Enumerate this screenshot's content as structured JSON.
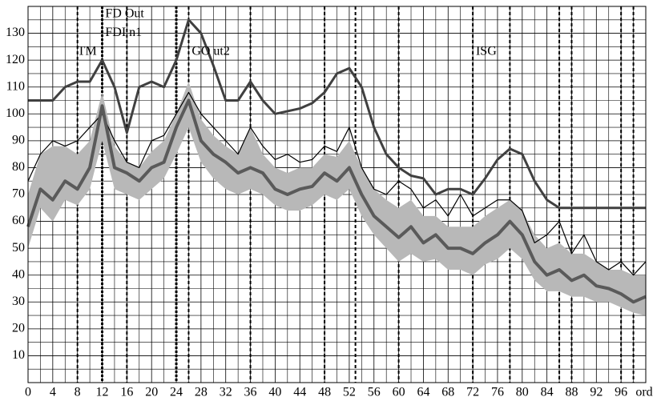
{
  "chart_data": {
    "type": "line",
    "x_label": "ord",
    "x": [
      0,
      2,
      4,
      6,
      8,
      10,
      12,
      14,
      16,
      18,
      20,
      22,
      24,
      26,
      28,
      30,
      32,
      34,
      36,
      38,
      40,
      42,
      44,
      46,
      48,
      50,
      52,
      54,
      56,
      58,
      60,
      62,
      64,
      66,
      68,
      70,
      72,
      74,
      76,
      78,
      80,
      82,
      84,
      86,
      88,
      90,
      92,
      94,
      96,
      98,
      100
    ],
    "band": {
      "color": "#b8b8b8",
      "high": [
        70,
        85,
        88,
        88,
        85,
        90,
        108,
        88,
        82,
        80,
        86,
        90,
        100,
        112,
        98,
        92,
        88,
        85,
        95,
        85,
        80,
        78,
        80,
        80,
        85,
        84,
        90,
        80,
        72,
        68,
        65,
        68,
        62,
        62,
        58,
        58,
        58,
        62,
        65,
        68,
        64,
        55,
        50,
        52,
        48,
        48,
        45,
        42,
        42,
        40,
        40
      ],
      "low": [
        50,
        65,
        60,
        68,
        66,
        72,
        90,
        72,
        70,
        68,
        72,
        76,
        85,
        95,
        82,
        76,
        72,
        70,
        72,
        70,
        66,
        64,
        64,
        66,
        70,
        68,
        72,
        62,
        55,
        50,
        45,
        48,
        45,
        46,
        42,
        42,
        40,
        44,
        46,
        50,
        46,
        38,
        34,
        34,
        32,
        32,
        30,
        30,
        28,
        26,
        25
      ]
    },
    "series": [
      {
        "color": "#000000",
        "width": 1.2,
        "values": [
          75,
          85,
          90,
          88,
          90,
          95,
          100,
          90,
          82,
          80,
          90,
          92,
          100,
          108,
          100,
          95,
          90,
          85,
          95,
          88,
          83,
          85,
          82,
          83,
          88,
          86,
          95,
          80,
          72,
          70,
          75,
          72,
          65,
          68,
          62,
          70,
          62,
          65,
          68,
          68,
          64,
          52,
          55,
          60,
          48,
          55,
          45,
          42,
          45,
          40,
          45
        ]
      },
      {
        "color": "#5a5a5a",
        "width": 4,
        "values": [
          58,
          72,
          68,
          75,
          72,
          80,
          103,
          80,
          78,
          75,
          80,
          82,
          95,
          105,
          90,
          85,
          82,
          78,
          80,
          78,
          72,
          70,
          72,
          73,
          78,
          75,
          80,
          70,
          62,
          58,
          54,
          58,
          52,
          55,
          50,
          50,
          48,
          52,
          55,
          60,
          55,
          45,
          40,
          42,
          38,
          40,
          36,
          35,
          33,
          30,
          32
        ]
      },
      {
        "color": "#404040",
        "width": 3,
        "values": [
          105,
          105,
          105,
          110,
          112,
          112,
          120,
          110,
          93,
          110,
          112,
          110,
          120,
          135,
          130,
          118,
          105,
          105,
          112,
          105,
          100,
          101,
          102,
          104,
          108,
          115,
          117,
          110,
          95,
          85,
          80,
          77,
          76,
          70,
          72,
          72,
          70,
          76,
          83,
          87,
          85,
          75,
          68,
          65,
          65,
          65,
          65,
          65,
          65,
          65,
          65
        ]
      }
    ],
    "vlines": [
      {
        "x": 8,
        "thick": false
      },
      {
        "x": 12,
        "thick": true
      },
      {
        "x": 16,
        "thick": false
      },
      {
        "x": 24,
        "thick": true
      },
      {
        "x": 26,
        "thick": false
      },
      {
        "x": 36,
        "thick": false
      },
      {
        "x": 48,
        "thick": false
      },
      {
        "x": 53,
        "thick": false
      },
      {
        "x": 60,
        "thick": false
      },
      {
        "x": 72,
        "thick": false
      },
      {
        "x": 78,
        "thick": false
      },
      {
        "x": 86,
        "thick": false
      },
      {
        "x": 88,
        "thick": false
      },
      {
        "x": 96,
        "thick": false
      },
      {
        "x": 98,
        "thick": false
      }
    ],
    "annotations": [
      {
        "text": "TM",
        "x": 8,
        "y": 123
      },
      {
        "text": "FD Out",
        "x": 12.5,
        "y": 137
      },
      {
        "text": "FDI n1",
        "x": 12.5,
        "y": 130
      },
      {
        "text": "GO ut2",
        "x": 26.5,
        "y": 123
      },
      {
        "text": "ISG",
        "x": 72.5,
        "y": 123
      }
    ],
    "xlim": [
      0,
      100
    ],
    "ylim": [
      0,
      140
    ],
    "xticks": [
      0,
      4,
      8,
      12,
      16,
      20,
      24,
      28,
      32,
      36,
      40,
      44,
      48,
      52,
      56,
      60,
      64,
      68,
      72,
      76,
      80,
      84,
      88,
      92,
      96
    ],
    "x_minor_ticks": [
      2,
      6,
      10,
      14,
      18,
      22,
      26,
      30,
      34,
      38,
      42,
      46,
      50,
      54,
      58,
      62,
      66,
      70,
      74,
      78,
      82,
      86,
      90,
      94,
      98
    ],
    "yticks": [
      10,
      20,
      30,
      40,
      50,
      60,
      70,
      80,
      90,
      100,
      110,
      120,
      130
    ],
    "y_minor_ticks": [
      5,
      15,
      25,
      35,
      45,
      55,
      65,
      75,
      85,
      95,
      105,
      115,
      125,
      135
    ],
    "grid": true
  }
}
